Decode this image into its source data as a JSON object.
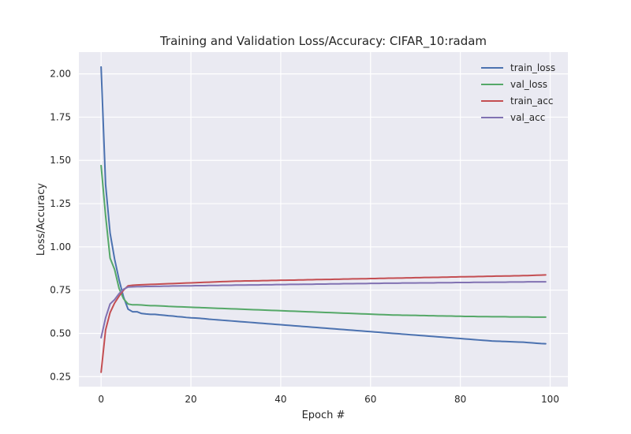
{
  "chart_data": {
    "type": "line",
    "title": "Training and Validation Loss/Accuracy: CIFAR_10:radam",
    "xlabel": "Epoch #",
    "ylabel": "Loss/Accuracy",
    "xlim": [
      -4.95,
      103.95
    ],
    "ylim": [
      0.192,
      2.126
    ],
    "x_ticks": [
      0,
      20,
      40,
      60,
      80,
      100
    ],
    "y_ticks": [
      0.25,
      0.5,
      0.75,
      1.0,
      1.25,
      1.5,
      1.75,
      2.0
    ],
    "x_tick_labels": [
      "0",
      "20",
      "40",
      "60",
      "80",
      "100"
    ],
    "y_tick_labels": [
      "0.25",
      "0.50",
      "0.75",
      "1.00",
      "1.25",
      "1.50",
      "1.75",
      "2.00"
    ],
    "grid": true,
    "legend_position": "top-right",
    "x_range": [
      0,
      99
    ],
    "series": [
      {
        "name": "train_loss",
        "color": "#4c72b0",
        "values": [
          2.04,
          1.36,
          1.08,
          0.93,
          0.81,
          0.71,
          0.64,
          0.625,
          0.625,
          0.615,
          0.612,
          0.61,
          0.61,
          0.607,
          0.605,
          0.602,
          0.6,
          0.597,
          0.595,
          0.592,
          0.59,
          0.589,
          0.587,
          0.585,
          0.582,
          0.58,
          0.578,
          0.576,
          0.574,
          0.572,
          0.57,
          0.568,
          0.566,
          0.564,
          0.562,
          0.56,
          0.558,
          0.556,
          0.554,
          0.552,
          0.55,
          0.548,
          0.546,
          0.544,
          0.542,
          0.54,
          0.538,
          0.536,
          0.534,
          0.532,
          0.53,
          0.528,
          0.526,
          0.524,
          0.522,
          0.52,
          0.518,
          0.516,
          0.514,
          0.512,
          0.51,
          0.508,
          0.506,
          0.504,
          0.502,
          0.5,
          0.498,
          0.496,
          0.494,
          0.492,
          0.49,
          0.488,
          0.486,
          0.484,
          0.482,
          0.48,
          0.478,
          0.476,
          0.474,
          0.472,
          0.47,
          0.468,
          0.466,
          0.464,
          0.462,
          0.46,
          0.458,
          0.456,
          0.455,
          0.454,
          0.453,
          0.452,
          0.451,
          0.45,
          0.449,
          0.447,
          0.445,
          0.443,
          0.441,
          0.44
        ]
      },
      {
        "name": "val_loss",
        "color": "#55a868",
        "values": [
          1.47,
          1.18,
          0.935,
          0.87,
          0.76,
          0.7,
          0.67,
          0.665,
          0.665,
          0.664,
          0.662,
          0.66,
          0.66,
          0.659,
          0.658,
          0.656,
          0.655,
          0.654,
          0.653,
          0.652,
          0.651,
          0.65,
          0.649,
          0.648,
          0.647,
          0.646,
          0.645,
          0.644,
          0.643,
          0.642,
          0.641,
          0.64,
          0.639,
          0.638,
          0.637,
          0.636,
          0.635,
          0.634,
          0.633,
          0.632,
          0.631,
          0.63,
          0.629,
          0.628,
          0.627,
          0.626,
          0.625,
          0.624,
          0.623,
          0.622,
          0.621,
          0.62,
          0.619,
          0.618,
          0.617,
          0.616,
          0.615,
          0.614,
          0.613,
          0.612,
          0.611,
          0.61,
          0.609,
          0.608,
          0.607,
          0.606,
          0.606,
          0.605,
          0.605,
          0.604,
          0.604,
          0.603,
          0.603,
          0.602,
          0.602,
          0.601,
          0.601,
          0.6,
          0.6,
          0.599,
          0.599,
          0.598,
          0.598,
          0.598,
          0.597,
          0.597,
          0.597,
          0.596,
          0.596,
          0.596,
          0.596,
          0.595,
          0.595,
          0.595,
          0.595,
          0.595,
          0.594,
          0.594,
          0.594,
          0.594
        ]
      },
      {
        "name": "train_acc",
        "color": "#c44e52",
        "values": [
          0.275,
          0.52,
          0.62,
          0.675,
          0.715,
          0.75,
          0.775,
          0.778,
          0.78,
          0.781,
          0.782,
          0.783,
          0.784,
          0.785,
          0.786,
          0.787,
          0.788,
          0.789,
          0.79,
          0.791,
          0.792,
          0.793,
          0.794,
          0.795,
          0.796,
          0.797,
          0.798,
          0.799,
          0.8,
          0.801,
          0.802,
          0.802,
          0.803,
          0.803,
          0.804,
          0.804,
          0.805,
          0.805,
          0.806,
          0.806,
          0.807,
          0.807,
          0.808,
          0.808,
          0.809,
          0.809,
          0.81,
          0.81,
          0.811,
          0.811,
          0.812,
          0.812,
          0.813,
          0.813,
          0.814,
          0.814,
          0.815,
          0.815,
          0.816,
          0.816,
          0.817,
          0.817,
          0.818,
          0.818,
          0.819,
          0.819,
          0.82,
          0.82,
          0.821,
          0.821,
          0.822,
          0.822,
          0.823,
          0.823,
          0.824,
          0.824,
          0.825,
          0.825,
          0.826,
          0.826,
          0.827,
          0.827,
          0.828,
          0.828,
          0.829,
          0.829,
          0.83,
          0.83,
          0.831,
          0.831,
          0.832,
          0.832,
          0.833,
          0.833,
          0.834,
          0.834,
          0.835,
          0.836,
          0.837,
          0.838
        ]
      },
      {
        "name": "val_acc",
        "color": "#8172b2",
        "values": [
          0.475,
          0.59,
          0.67,
          0.695,
          0.73,
          0.755,
          0.768,
          0.769,
          0.77,
          0.77,
          0.771,
          0.771,
          0.772,
          0.772,
          0.773,
          0.773,
          0.774,
          0.774,
          0.775,
          0.775,
          0.775,
          0.776,
          0.776,
          0.776,
          0.777,
          0.777,
          0.777,
          0.778,
          0.778,
          0.778,
          0.779,
          0.779,
          0.779,
          0.78,
          0.78,
          0.78,
          0.781,
          0.781,
          0.781,
          0.782,
          0.782,
          0.782,
          0.783,
          0.783,
          0.783,
          0.784,
          0.784,
          0.784,
          0.785,
          0.785,
          0.785,
          0.786,
          0.786,
          0.786,
          0.787,
          0.787,
          0.787,
          0.788,
          0.788,
          0.788,
          0.789,
          0.789,
          0.789,
          0.79,
          0.79,
          0.79,
          0.79,
          0.791,
          0.791,
          0.791,
          0.791,
          0.792,
          0.792,
          0.792,
          0.792,
          0.793,
          0.793,
          0.793,
          0.793,
          0.794,
          0.794,
          0.794,
          0.794,
          0.795,
          0.795,
          0.795,
          0.795,
          0.796,
          0.796,
          0.796,
          0.796,
          0.797,
          0.797,
          0.797,
          0.797,
          0.798,
          0.798,
          0.798,
          0.798,
          0.798
        ]
      }
    ]
  }
}
